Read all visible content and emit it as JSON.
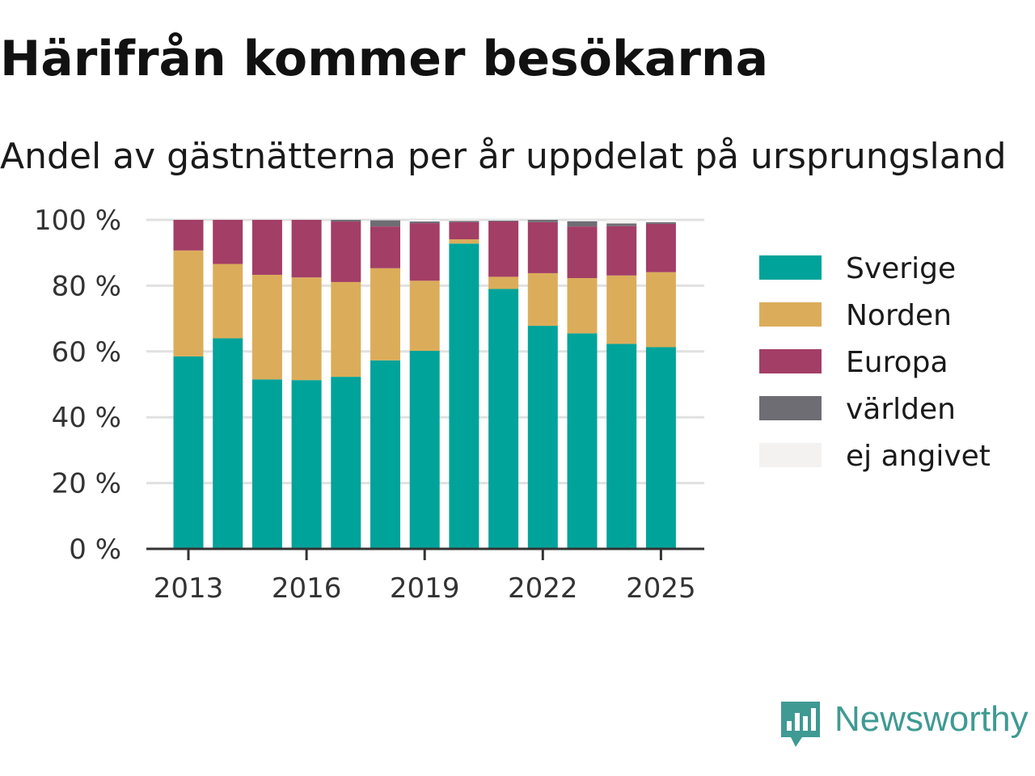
{
  "title": "Härifrån kommer besökarna",
  "subtitle": "Andel av gästnätterna per år uppdelat på ursprungsland",
  "brand": {
    "name": "Newsworthy",
    "color": "#3f9a93",
    "icon": "newsworthy-logo-icon"
  },
  "chart_data": {
    "type": "bar",
    "stacked": true,
    "title": "Härifrån kommer besökarna",
    "subtitle": "Andel av gästnätterna per år uppdelat på ursprungsland",
    "categories": [
      "2013",
      "2014",
      "2015",
      "2016",
      "2017",
      "2018",
      "2019",
      "2020",
      "2021",
      "2022",
      "2023",
      "2024",
      "2025"
    ],
    "x_tick_labels": [
      "2013",
      "2016",
      "2019",
      "2022",
      "2025"
    ],
    "y_tick_labels": [
      "0 %",
      "20 %",
      "40 %",
      "60 %",
      "80 %",
      "100 %"
    ],
    "ylim": [
      0,
      100
    ],
    "grid": true,
    "legend_position": "right",
    "series": [
      {
        "name": "Sverige",
        "color": "#00a39a",
        "values": [
          58.5,
          64,
          51.5,
          51.3,
          52.3,
          57.3,
          60.2,
          92.8,
          79,
          67.8,
          65.5,
          62.3,
          61.3
        ]
      },
      {
        "name": "Norden",
        "color": "#dbad5a",
        "values": [
          32.2,
          22.6,
          31.8,
          31.2,
          28.8,
          28,
          21.3,
          1.3,
          3.7,
          16,
          16.8,
          20.8,
          22.8
        ]
      },
      {
        "name": "Europa",
        "color": "#a33e66",
        "values": [
          9.3,
          13.4,
          16.7,
          17.5,
          18.4,
          12.7,
          17.5,
          5.2,
          16.8,
          15.5,
          15.7,
          15,
          14.7
        ]
      },
      {
        "name": "världen",
        "color": "#6e6d74",
        "values": [
          0,
          0,
          0,
          0,
          0.5,
          1.9,
          0.5,
          0.4,
          0.3,
          0.7,
          1.6,
          0.8,
          0.5
        ]
      },
      {
        "name": "ej angivet",
        "color": "#f3f2f0",
        "values": [
          0,
          0,
          0,
          0,
          0,
          0.1,
          0.5,
          0.3,
          0.2,
          0,
          0.4,
          1.1,
          0.7
        ]
      }
    ]
  }
}
